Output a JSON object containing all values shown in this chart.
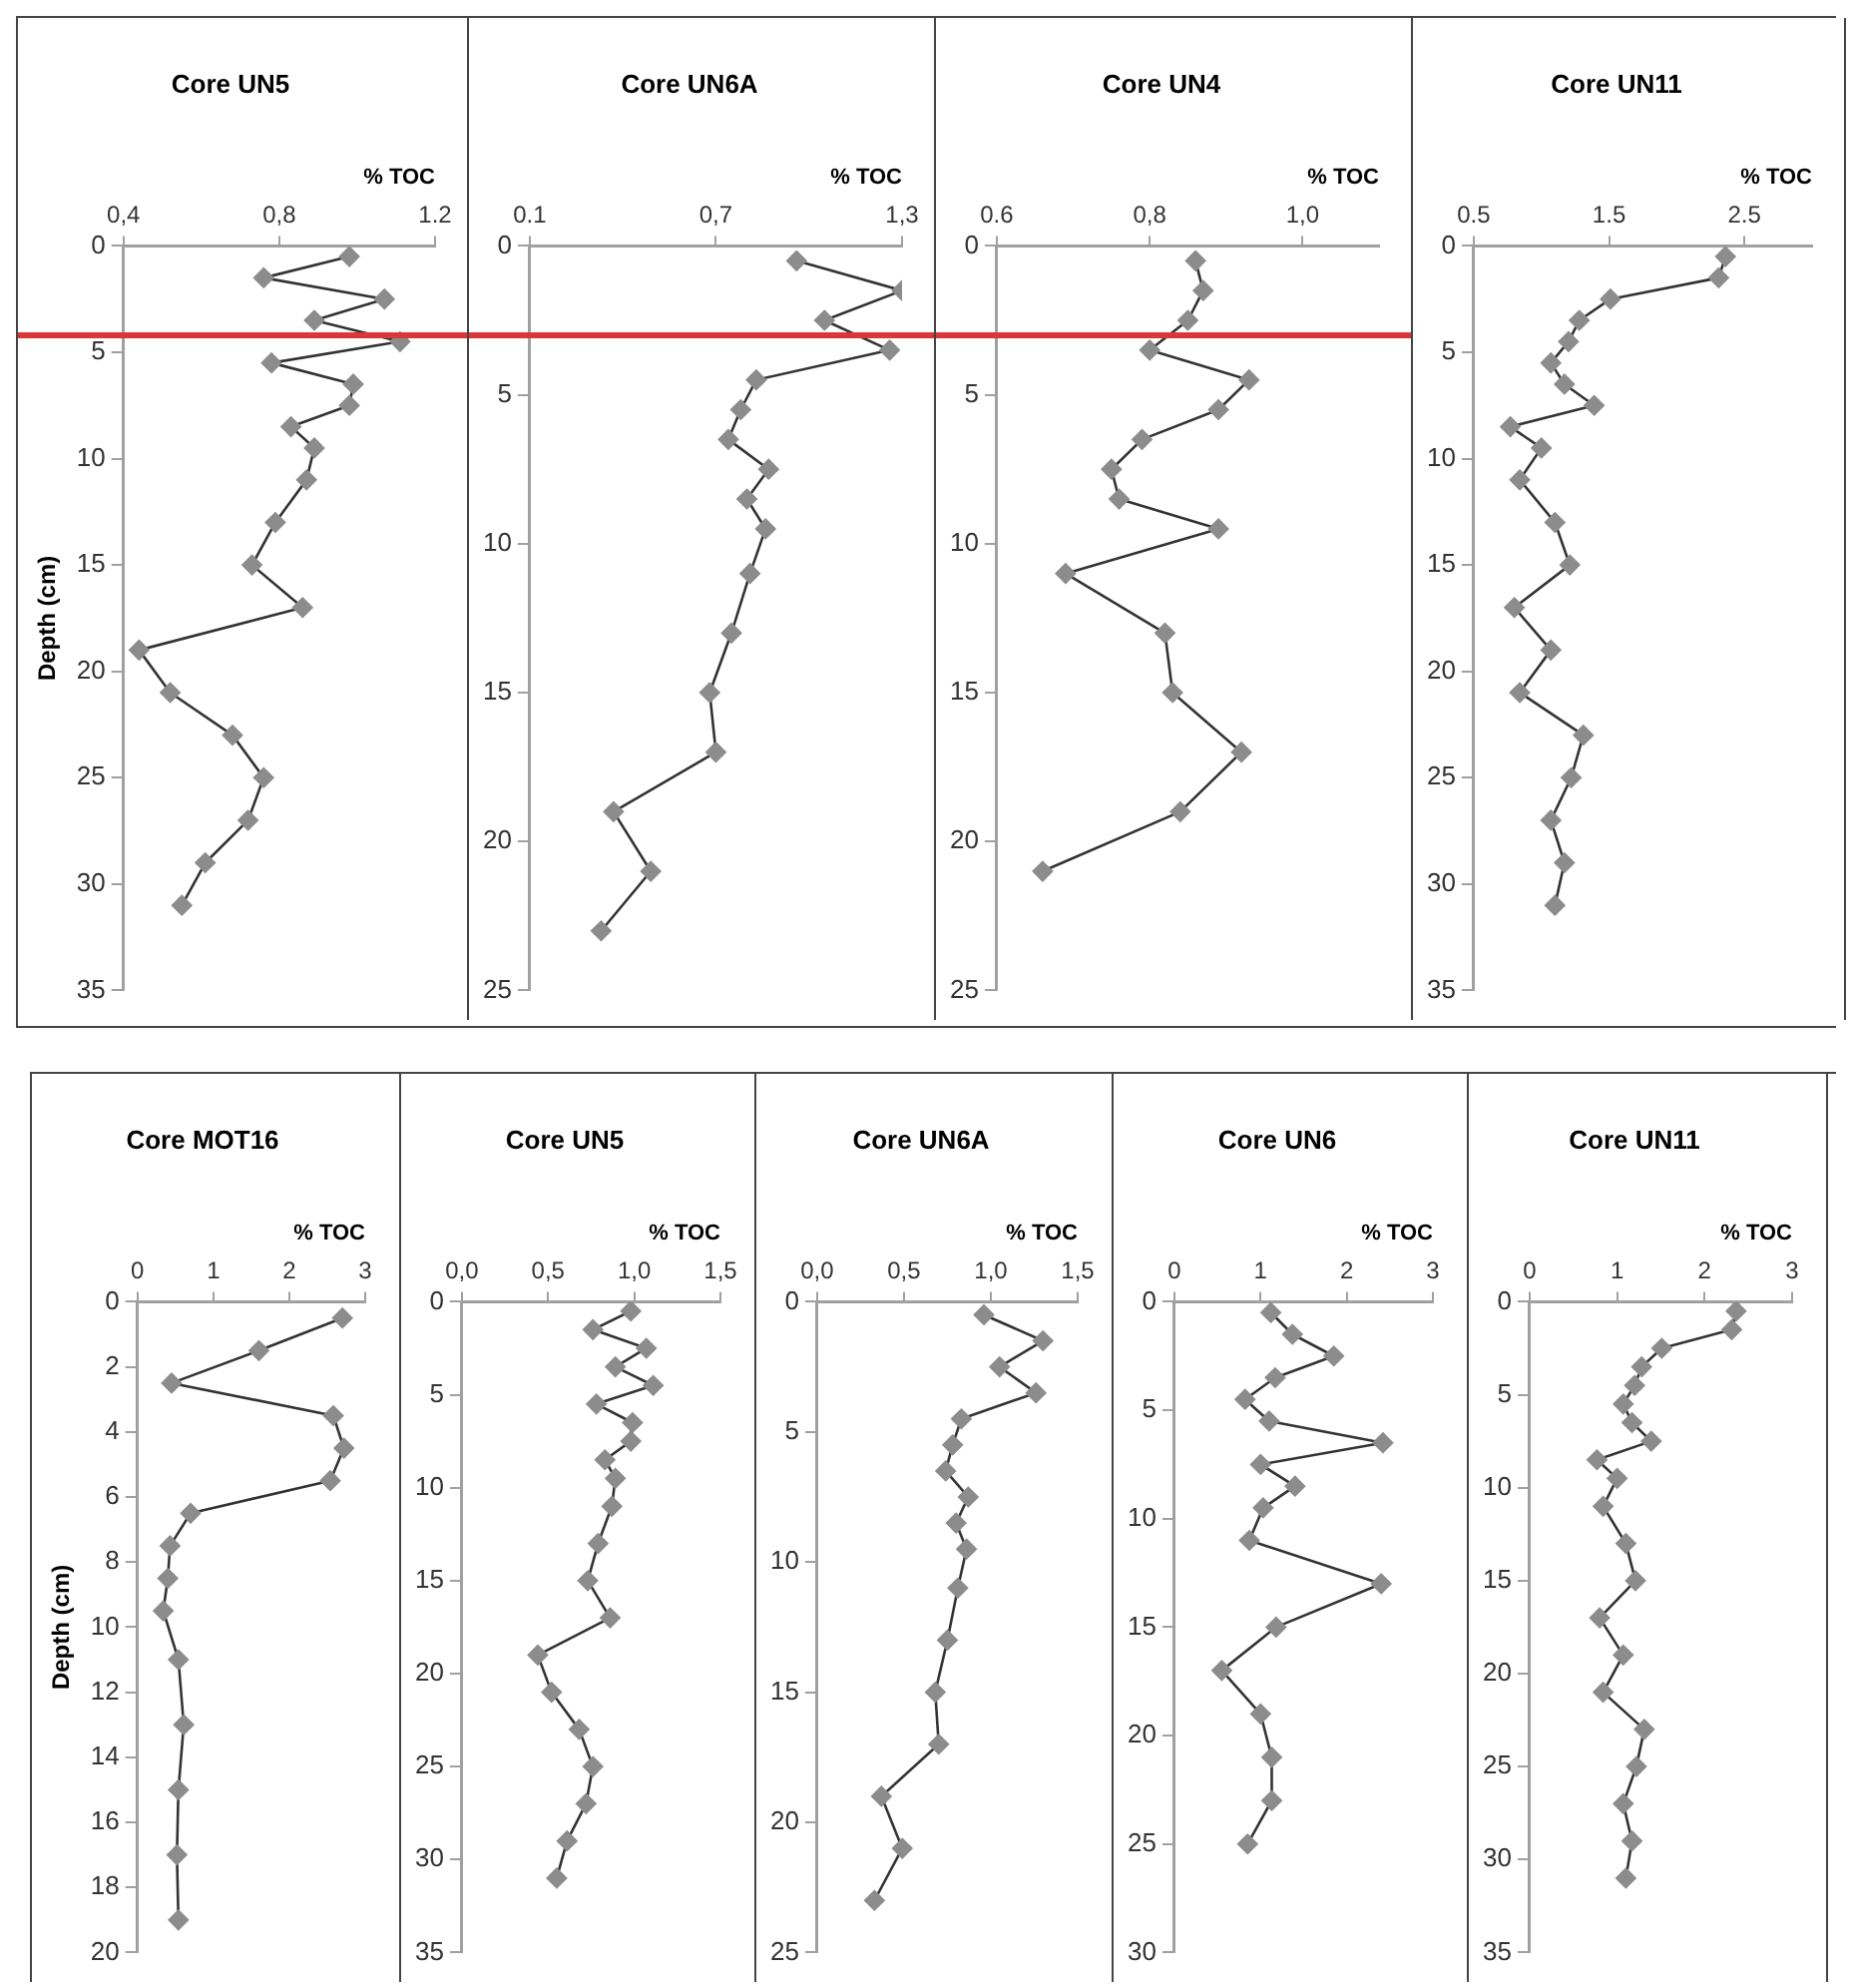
{
  "chart_data": [
    {
      "type": "line",
      "title": "Core UN5",
      "xlabel": "% TOC",
      "ylabel": "Depth (cm)",
      "xlim": [
        0.4,
        1.2
      ],
      "xticks": [
        {
          "value": 0.4,
          "label": "0,4"
        },
        {
          "value": 0.8,
          "label": "0,8"
        },
        1.2
      ],
      "ylim": [
        35,
        0
      ],
      "yticks": [
        0,
        5,
        10,
        15,
        20,
        25,
        30,
        35
      ],
      "marker": "diamond",
      "line_style": "solid",
      "legend": false,
      "ref_lines": [
        {
          "axis": "y",
          "value": 4.2,
          "label": null,
          "color": "#d9383a"
        }
      ],
      "series": [
        {
          "color": "#8c8c8c",
          "x": [
            0.98,
            0.76,
            1.07,
            0.89,
            1.11,
            0.78,
            0.99,
            0.98,
            0.83,
            0.89,
            0.87,
            0.79,
            0.73,
            0.86,
            0.44,
            0.52,
            0.68,
            0.76,
            0.72,
            0.61,
            0.55
          ],
          "values": [
            0.5,
            1.5,
            2.5,
            3.5,
            4.5,
            5.5,
            6.5,
            7.5,
            8.5,
            9.5,
            11,
            13,
            15,
            17,
            19,
            21,
            23,
            25,
            27,
            29,
            31
          ]
        }
      ]
    },
    {
      "type": "line",
      "title": "Core UN6A",
      "xlabel": "% TOC",
      "xlim": [
        0.1,
        1.3
      ],
      "xticks": [
        0.1,
        {
          "value": 0.7,
          "label": "0,7"
        },
        {
          "value": 1.3,
          "label": "1,3"
        }
      ],
      "ylim": [
        25,
        0
      ],
      "yticks": [
        0,
        5,
        10,
        15,
        20,
        25
      ],
      "marker": "diamond",
      "line_style": "solid",
      "legend": false,
      "ref_lines": [
        {
          "axis": "y",
          "value": 3.0,
          "label": null,
          "color": "#d9383a"
        }
      ],
      "series": [
        {
          "color": "#8c8c8c",
          "x": [
            0.96,
            1.3,
            1.05,
            1.26,
            0.83,
            0.78,
            0.74,
            0.87,
            0.8,
            0.86,
            0.81,
            0.75,
            0.68,
            0.7,
            0.37,
            0.49,
            0.33
          ],
          "values": [
            0.5,
            1.5,
            2.5,
            3.5,
            4.5,
            5.5,
            6.5,
            7.5,
            8.5,
            9.5,
            11,
            13,
            15,
            17,
            19,
            21,
            23
          ]
        }
      ]
    },
    {
      "type": "line",
      "title": "Core UN4",
      "xlabel": "% TOC",
      "xlim": [
        0.6,
        1.1
      ],
      "xticks": [
        0.6,
        {
          "value": 0.8,
          "label": "0,8"
        },
        {
          "value": 1.0,
          "label": "1,0"
        }
      ],
      "ylim": [
        25,
        0
      ],
      "yticks": [
        0,
        5,
        10,
        15,
        20,
        25
      ],
      "marker": "diamond",
      "line_style": "solid",
      "legend": false,
      "ref_lines": [
        {
          "axis": "y",
          "value": 3.0,
          "label": null,
          "color": "#d9383a"
        }
      ],
      "series": [
        {
          "color": "#8c8c8c",
          "x": [
            0.86,
            0.87,
            0.85,
            0.8,
            0.93,
            0.89,
            0.79,
            0.75,
            0.76,
            0.89,
            0.69,
            0.82,
            0.83,
            0.92,
            0.84,
            0.66
          ],
          "values": [
            0.5,
            1.5,
            2.5,
            3.5,
            4.5,
            5.5,
            6.5,
            7.5,
            8.5,
            9.5,
            11,
            13,
            15,
            17,
            19,
            21
          ]
        }
      ]
    },
    {
      "type": "line",
      "title": "Core UN11",
      "xlabel": "% TOC",
      "xlim": [
        0.5,
        3
      ],
      "xticks": [
        0.5,
        1.5,
        2.5
      ],
      "ylim": [
        35,
        0
      ],
      "yticks": [
        0,
        5,
        10,
        15,
        20,
        25,
        30,
        35
      ],
      "marker": "diamond",
      "line_style": "solid",
      "legend": false,
      "series": [
        {
          "color": "#8c8c8c",
          "x": [
            2.36,
            2.31,
            1.51,
            1.28,
            1.2,
            1.07,
            1.17,
            1.39,
            0.77,
            1.0,
            0.84,
            1.1,
            1.21,
            0.8,
            1.07,
            0.84,
            1.31,
            1.22,
            1.07,
            1.17,
            1.1
          ],
          "values": [
            0.5,
            1.5,
            2.5,
            3.5,
            4.5,
            5.5,
            6.5,
            7.5,
            8.5,
            9.5,
            11,
            13,
            15,
            17,
            19,
            21,
            23,
            25,
            27,
            29,
            31
          ]
        }
      ]
    },
    {
      "type": "line",
      "title": "Core MOT16",
      "xlabel": "% TOC",
      "ylabel": "Depth (cm)",
      "xlim": [
        0,
        3
      ],
      "xticks": [
        0,
        1,
        2,
        3
      ],
      "ylim": [
        20,
        0
      ],
      "yticks": [
        0,
        2,
        4,
        6,
        8,
        10,
        12,
        14,
        16,
        18,
        20
      ],
      "marker": "diamond",
      "line_style": "solid",
      "legend": false,
      "series": [
        {
          "color": "#8c8c8c",
          "x": [
            2.7,
            1.6,
            0.45,
            2.58,
            2.72,
            2.54,
            0.7,
            0.43,
            0.4,
            0.34,
            0.54,
            0.61,
            0.54,
            0.52,
            0.54
          ],
          "values": [
            0.5,
            1.5,
            2.5,
            3.5,
            4.5,
            5.5,
            6.5,
            7.5,
            8.5,
            9.5,
            11,
            13,
            15,
            17,
            19
          ]
        }
      ]
    },
    {
      "type": "line",
      "title": "Core UN5",
      "xlabel": "% TOC",
      "xlim": [
        0,
        1.5
      ],
      "xticks": [
        {
          "value": 0,
          "label": "0,0"
        },
        {
          "value": 0.5,
          "label": "0,5"
        },
        {
          "value": 1,
          "label": "1,0"
        },
        {
          "value": 1.5,
          "label": "1,5"
        }
      ],
      "ylim": [
        35,
        0
      ],
      "yticks": [
        0,
        5,
        10,
        15,
        20,
        25,
        30,
        35
      ],
      "marker": "diamond",
      "line_style": "solid",
      "legend": false,
      "series": [
        {
          "color": "#8c8c8c",
          "x": [
            0.98,
            0.76,
            1.07,
            0.89,
            1.11,
            0.78,
            0.99,
            0.98,
            0.83,
            0.89,
            0.87,
            0.79,
            0.73,
            0.86,
            0.44,
            0.52,
            0.68,
            0.76,
            0.72,
            0.61,
            0.55
          ],
          "values": [
            0.5,
            1.5,
            2.5,
            3.5,
            4.5,
            5.5,
            6.5,
            7.5,
            8.5,
            9.5,
            11,
            13,
            15,
            17,
            19,
            21,
            23,
            25,
            27,
            29,
            31
          ]
        }
      ]
    },
    {
      "type": "line",
      "title": "Core UN6A",
      "xlabel": "% TOC",
      "xlim": [
        0,
        1.5
      ],
      "xticks": [
        {
          "value": 0,
          "label": "0,0"
        },
        {
          "value": 0.5,
          "label": "0,5"
        },
        {
          "value": 1,
          "label": "1,0"
        },
        {
          "value": 1.5,
          "label": "1,5"
        }
      ],
      "ylim": [
        25,
        0
      ],
      "yticks": [
        0,
        5,
        10,
        15,
        20,
        25
      ],
      "marker": "diamond",
      "line_style": "solid",
      "legend": false,
      "series": [
        {
          "color": "#8c8c8c",
          "x": [
            0.96,
            1.3,
            1.05,
            1.26,
            0.83,
            0.78,
            0.74,
            0.87,
            0.8,
            0.86,
            0.81,
            0.75,
            0.68,
            0.7,
            0.37,
            0.49,
            0.33
          ],
          "values": [
            0.5,
            1.5,
            2.5,
            3.5,
            4.5,
            5.5,
            6.5,
            7.5,
            8.5,
            9.5,
            11,
            13,
            15,
            17,
            19,
            21,
            23
          ]
        }
      ]
    },
    {
      "type": "line",
      "title": "Core UN6",
      "xlabel": "% TOC",
      "xlim": [
        0,
        3
      ],
      "xticks": [
        0,
        1,
        2,
        3
      ],
      "ylim": [
        30,
        0
      ],
      "yticks": [
        0,
        5,
        10,
        15,
        20,
        25,
        30
      ],
      "marker": "diamond",
      "line_style": "solid",
      "legend": false,
      "series": [
        {
          "color": "#8c8c8c",
          "x": [
            1.12,
            1.37,
            1.85,
            1.17,
            0.82,
            1.1,
            2.42,
            1.0,
            1.4,
            1.03,
            0.87,
            2.4,
            1.18,
            0.55,
            1.0,
            1.13,
            1.13,
            0.85
          ],
          "values": [
            0.5,
            1.5,
            2.5,
            3.5,
            4.5,
            5.5,
            6.5,
            7.5,
            8.5,
            9.5,
            11,
            13,
            15,
            17,
            19,
            21,
            23,
            25
          ]
        }
      ]
    },
    {
      "type": "line",
      "title": "Core UN11",
      "xlabel": "% TOC",
      "xlim": [
        0,
        3
      ],
      "xticks": [
        0,
        1,
        2,
        3
      ],
      "ylim": [
        35,
        0
      ],
      "yticks": [
        0,
        5,
        10,
        15,
        20,
        25,
        30,
        35
      ],
      "marker": "diamond",
      "line_style": "solid",
      "legend": false,
      "series": [
        {
          "color": "#8c8c8c",
          "x": [
            2.36,
            2.31,
            1.51,
            1.28,
            1.2,
            1.07,
            1.17,
            1.39,
            0.77,
            1.0,
            0.84,
            1.1,
            1.21,
            0.8,
            1.07,
            0.84,
            1.31,
            1.22,
            1.07,
            1.17,
            1.1
          ],
          "values": [
            0.5,
            1.5,
            2.5,
            3.5,
            4.5,
            5.5,
            6.5,
            7.5,
            8.5,
            9.5,
            11,
            13,
            15,
            17,
            19,
            21,
            23,
            25,
            27,
            29,
            31
          ]
        }
      ]
    }
  ]
}
